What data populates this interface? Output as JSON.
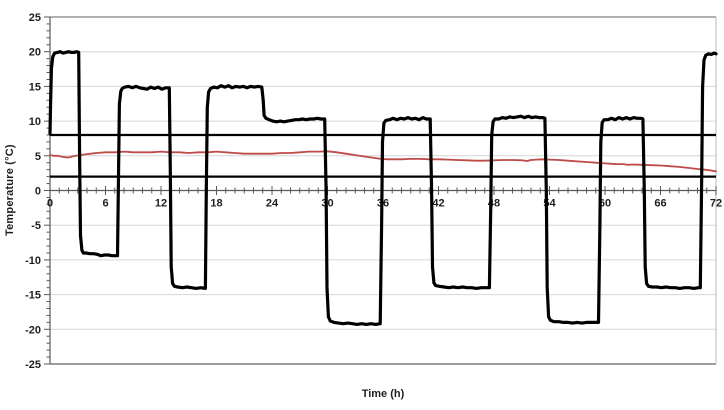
{
  "chart_data": {
    "type": "line",
    "title": "",
    "xlabel": "Time (h)",
    "ylabel": "Temperature (°C)",
    "xlim": [
      0,
      72
    ],
    "ylim": [
      -25,
      25
    ],
    "x_major_ticks": [
      0,
      6,
      12,
      18,
      24,
      30,
      36,
      42,
      48,
      54,
      60,
      66,
      72
    ],
    "x_minor_step": 1,
    "y_major_ticks": [
      25,
      20,
      15,
      10,
      5,
      0,
      -5,
      -10,
      -15,
      -20,
      -25
    ],
    "y_minor_step": 1,
    "grid": "horizontal-major-only",
    "legend": "none",
    "reference_lines": [
      {
        "name": "upper-limit",
        "y": 8,
        "color": "#000000",
        "width": 2.2
      },
      {
        "name": "lower-limit",
        "y": 2,
        "color": "#000000",
        "width": 2.2
      }
    ],
    "series": [
      {
        "name": "red-line",
        "color": "#BE4B48",
        "width": 1.8,
        "points": [
          [
            0,
            5.1
          ],
          [
            0.4,
            5.0
          ],
          [
            0.8,
            5.0
          ],
          [
            1.2,
            4.9
          ],
          [
            1.6,
            4.8
          ],
          [
            2.0,
            4.75
          ],
          [
            2.4,
            4.9
          ],
          [
            2.8,
            5.0
          ],
          [
            3.2,
            5.1
          ],
          [
            3.8,
            5.2
          ],
          [
            4.4,
            5.3
          ],
          [
            5.0,
            5.4
          ],
          [
            6.0,
            5.5
          ],
          [
            7,
            5.5
          ],
          [
            8,
            5.6
          ],
          [
            9,
            5.5
          ],
          [
            10,
            5.5
          ],
          [
            11,
            5.5
          ],
          [
            12,
            5.6
          ],
          [
            13,
            5.5
          ],
          [
            14,
            5.5
          ],
          [
            15,
            5.4
          ],
          [
            16,
            5.5
          ],
          [
            17,
            5.5
          ],
          [
            18,
            5.6
          ],
          [
            19,
            5.5
          ],
          [
            20,
            5.4
          ],
          [
            21,
            5.3
          ],
          [
            22,
            5.3
          ],
          [
            23,
            5.3
          ],
          [
            24,
            5.3
          ],
          [
            25,
            5.4
          ],
          [
            26,
            5.4
          ],
          [
            27,
            5.5
          ],
          [
            28,
            5.6
          ],
          [
            29,
            5.6
          ],
          [
            30,
            5.65
          ],
          [
            31,
            5.5
          ],
          [
            32,
            5.3
          ],
          [
            33,
            5.1
          ],
          [
            34,
            4.9
          ],
          [
            35,
            4.7
          ],
          [
            35.8,
            4.55
          ],
          [
            36.5,
            4.5
          ],
          [
            37,
            4.5
          ],
          [
            38,
            4.5
          ],
          [
            39,
            4.55
          ],
          [
            40,
            4.55
          ],
          [
            41,
            4.5
          ],
          [
            42,
            4.5
          ],
          [
            43,
            4.45
          ],
          [
            44,
            4.4
          ],
          [
            45,
            4.35
          ],
          [
            46,
            4.3
          ],
          [
            47,
            4.3
          ],
          [
            48,
            4.35
          ],
          [
            49,
            4.4
          ],
          [
            50,
            4.4
          ],
          [
            51,
            4.35
          ],
          [
            51.6,
            4.25
          ],
          [
            52.0,
            4.4
          ],
          [
            52.6,
            4.45
          ],
          [
            53.2,
            4.5
          ],
          [
            54,
            4.45
          ],
          [
            55,
            4.4
          ],
          [
            56,
            4.3
          ],
          [
            57,
            4.2
          ],
          [
            58,
            4.1
          ],
          [
            59,
            4.0
          ],
          [
            60,
            3.9
          ],
          [
            60.7,
            3.85
          ],
          [
            61.4,
            3.8
          ],
          [
            62.0,
            3.8
          ],
          [
            62.4,
            3.7
          ],
          [
            63,
            3.75
          ],
          [
            64,
            3.7
          ],
          [
            65,
            3.65
          ],
          [
            66,
            3.6
          ],
          [
            67,
            3.5
          ],
          [
            68,
            3.4
          ],
          [
            69,
            3.25
          ],
          [
            70,
            3.1
          ],
          [
            70.8,
            3.0
          ],
          [
            71.4,
            2.9
          ],
          [
            72,
            2.75
          ]
        ]
      },
      {
        "name": "black-line",
        "color": "#000000",
        "width": 3.2,
        "points": [
          [
            0,
            8.2
          ],
          [
            0.05,
            12
          ],
          [
            0.15,
            17.5
          ],
          [
            0.3,
            19.3
          ],
          [
            0.5,
            19.8
          ],
          [
            0.8,
            19.9
          ],
          [
            1.1,
            20.0
          ],
          [
            1.4,
            19.8
          ],
          [
            1.7,
            19.9
          ],
          [
            2.0,
            20.0
          ],
          [
            2.3,
            19.9
          ],
          [
            2.6,
            19.9
          ],
          [
            2.9,
            20.0
          ],
          [
            3.1,
            19.9
          ],
          [
            3.2,
            5
          ],
          [
            3.3,
            -6.5
          ],
          [
            3.45,
            -8.6
          ],
          [
            3.6,
            -9.0
          ],
          [
            3.9,
            -9.0
          ],
          [
            4.3,
            -9.1
          ],
          [
            4.7,
            -9.1
          ],
          [
            5.1,
            -9.2
          ],
          [
            5.5,
            -9.4
          ],
          [
            5.9,
            -9.3
          ],
          [
            6.3,
            -9.3
          ],
          [
            6.7,
            -9.4
          ],
          [
            7.1,
            -9.4
          ],
          [
            7.3,
            -9.4
          ],
          [
            7.4,
            2
          ],
          [
            7.5,
            12.5
          ],
          [
            7.65,
            14.3
          ],
          [
            7.8,
            14.7
          ],
          [
            8.1,
            14.9
          ],
          [
            8.5,
            15.0
          ],
          [
            8.9,
            14.8
          ],
          [
            9.3,
            15.0
          ],
          [
            9.7,
            14.8
          ],
          [
            10.1,
            14.7
          ],
          [
            10.5,
            14.6
          ],
          [
            10.9,
            14.9
          ],
          [
            11.3,
            14.7
          ],
          [
            11.7,
            14.9
          ],
          [
            12.1,
            14.6
          ],
          [
            12.5,
            14.8
          ],
          [
            12.9,
            14.8
          ],
          [
            13.0,
            3
          ],
          [
            13.1,
            -11
          ],
          [
            13.25,
            -13.4
          ],
          [
            13.45,
            -13.8
          ],
          [
            13.8,
            -13.9
          ],
          [
            14.3,
            -14.0
          ],
          [
            14.8,
            -13.9
          ],
          [
            15.3,
            -14.0
          ],
          [
            15.8,
            -14.1
          ],
          [
            16.3,
            -14.0
          ],
          [
            16.8,
            -14.1
          ],
          [
            16.9,
            0
          ],
          [
            17.0,
            12
          ],
          [
            17.15,
            14.2
          ],
          [
            17.35,
            14.7
          ],
          [
            17.7,
            14.9
          ],
          [
            18.1,
            14.8
          ],
          [
            18.5,
            15.1
          ],
          [
            18.9,
            14.9
          ],
          [
            19.3,
            15.1
          ],
          [
            19.7,
            14.8
          ],
          [
            20.1,
            15.0
          ],
          [
            20.5,
            14.9
          ],
          [
            20.9,
            15.0
          ],
          [
            21.3,
            14.8
          ],
          [
            21.7,
            15.0
          ],
          [
            22.1,
            14.9
          ],
          [
            22.5,
            15.0
          ],
          [
            22.9,
            14.9
          ],
          [
            23.05,
            13
          ],
          [
            23.15,
            10.8
          ],
          [
            23.35,
            10.4
          ],
          [
            23.7,
            10.2
          ],
          [
            24.1,
            10.0
          ],
          [
            24.5,
            9.9
          ],
          [
            24.9,
            10.0
          ],
          [
            25.3,
            9.9
          ],
          [
            25.7,
            10.0
          ],
          [
            26.1,
            10.1
          ],
          [
            26.5,
            10.2
          ],
          [
            26.9,
            10.2
          ],
          [
            27.3,
            10.3
          ],
          [
            27.7,
            10.2
          ],
          [
            28.1,
            10.3
          ],
          [
            28.5,
            10.3
          ],
          [
            28.9,
            10.4
          ],
          [
            29.3,
            10.3
          ],
          [
            29.7,
            10.3
          ],
          [
            29.85,
            0
          ],
          [
            29.95,
            -14
          ],
          [
            30.1,
            -18.2
          ],
          [
            30.3,
            -18.8
          ],
          [
            30.7,
            -19.0
          ],
          [
            31.2,
            -19.1
          ],
          [
            31.7,
            -19.2
          ],
          [
            32.2,
            -19.1
          ],
          [
            32.7,
            -19.2
          ],
          [
            33.2,
            -19.3
          ],
          [
            33.7,
            -19.2
          ],
          [
            34.2,
            -19.3
          ],
          [
            34.7,
            -19.2
          ],
          [
            35.2,
            -19.3
          ],
          [
            35.7,
            -19.2
          ],
          [
            35.85,
            -5
          ],
          [
            35.95,
            7
          ],
          [
            36.1,
            9.7
          ],
          [
            36.3,
            10.1
          ],
          [
            36.7,
            10.2
          ],
          [
            37.1,
            10.4
          ],
          [
            37.5,
            10.2
          ],
          [
            37.9,
            10.4
          ],
          [
            38.3,
            10.3
          ],
          [
            38.7,
            10.5
          ],
          [
            39.1,
            10.3
          ],
          [
            39.5,
            10.4
          ],
          [
            39.9,
            10.2
          ],
          [
            40.3,
            10.5
          ],
          [
            40.7,
            10.3
          ],
          [
            41.1,
            10.3
          ],
          [
            41.25,
            0
          ],
          [
            41.35,
            -11
          ],
          [
            41.5,
            -13.3
          ],
          [
            41.7,
            -13.7
          ],
          [
            42.1,
            -13.8
          ],
          [
            42.6,
            -13.9
          ],
          [
            43.1,
            -14.0
          ],
          [
            43.6,
            -13.9
          ],
          [
            44.1,
            -14.0
          ],
          [
            44.6,
            -13.9
          ],
          [
            45.1,
            -14.0
          ],
          [
            45.6,
            -14.0
          ],
          [
            46.1,
            -14.1
          ],
          [
            46.6,
            -14.0
          ],
          [
            47.1,
            -14.0
          ],
          [
            47.5,
            -14.0
          ],
          [
            47.65,
            -2
          ],
          [
            47.75,
            8
          ],
          [
            47.9,
            9.9
          ],
          [
            48.1,
            10.3
          ],
          [
            48.5,
            10.3
          ],
          [
            48.9,
            10.5
          ],
          [
            49.3,
            10.4
          ],
          [
            49.7,
            10.6
          ],
          [
            50.1,
            10.5
          ],
          [
            50.5,
            10.6
          ],
          [
            50.9,
            10.7
          ],
          [
            51.3,
            10.5
          ],
          [
            51.7,
            10.7
          ],
          [
            52.1,
            10.5
          ],
          [
            52.5,
            10.6
          ],
          [
            52.9,
            10.5
          ],
          [
            53.3,
            10.5
          ],
          [
            53.5,
            10.4
          ],
          [
            53.65,
            0
          ],
          [
            53.75,
            -14
          ],
          [
            53.9,
            -18.2
          ],
          [
            54.1,
            -18.7
          ],
          [
            54.5,
            -18.9
          ],
          [
            55.0,
            -18.9
          ],
          [
            55.5,
            -19.0
          ],
          [
            56.0,
            -19.0
          ],
          [
            56.5,
            -19.1
          ],
          [
            57.0,
            -19.0
          ],
          [
            57.5,
            -19.1
          ],
          [
            58.0,
            -19.0
          ],
          [
            58.5,
            -19.0
          ],
          [
            59.0,
            -19.0
          ],
          [
            59.3,
            -19.0
          ],
          [
            59.45,
            -5
          ],
          [
            59.55,
            7
          ],
          [
            59.7,
            9.8
          ],
          [
            59.9,
            10.2
          ],
          [
            60.3,
            10.2
          ],
          [
            60.7,
            10.4
          ],
          [
            61.1,
            10.2
          ],
          [
            61.5,
            10.5
          ],
          [
            61.9,
            10.3
          ],
          [
            62.3,
            10.5
          ],
          [
            62.7,
            10.3
          ],
          [
            63.1,
            10.5
          ],
          [
            63.5,
            10.4
          ],
          [
            63.9,
            10.4
          ],
          [
            64.1,
            10.3
          ],
          [
            64.25,
            0
          ],
          [
            64.35,
            -11
          ],
          [
            64.5,
            -13.4
          ],
          [
            64.7,
            -13.8
          ],
          [
            65.1,
            -13.9
          ],
          [
            65.6,
            -13.9
          ],
          [
            66.1,
            -14.0
          ],
          [
            66.6,
            -13.9
          ],
          [
            67.1,
            -14.0
          ],
          [
            67.6,
            -14.0
          ],
          [
            68.1,
            -14.1
          ],
          [
            68.6,
            -14.0
          ],
          [
            69.1,
            -14.0
          ],
          [
            69.6,
            -14.1
          ],
          [
            70.1,
            -14.0
          ],
          [
            70.3,
            -14.0
          ],
          [
            70.45,
            2
          ],
          [
            70.55,
            15
          ],
          [
            70.7,
            18.8
          ],
          [
            70.9,
            19.5
          ],
          [
            71.2,
            19.7
          ],
          [
            71.5,
            19.6
          ],
          [
            71.8,
            19.8
          ],
          [
            72,
            19.7
          ]
        ]
      }
    ]
  },
  "colors": {
    "background": "#FFFFFF",
    "gridline": "#D6D6D6",
    "axis_line": "#595959",
    "plot_border_top": "#808080",
    "plot_border_right": "#C6C6C6",
    "plot_border_bottom": "#9C9C9C",
    "tick_label_text": "#1F1F1F"
  }
}
